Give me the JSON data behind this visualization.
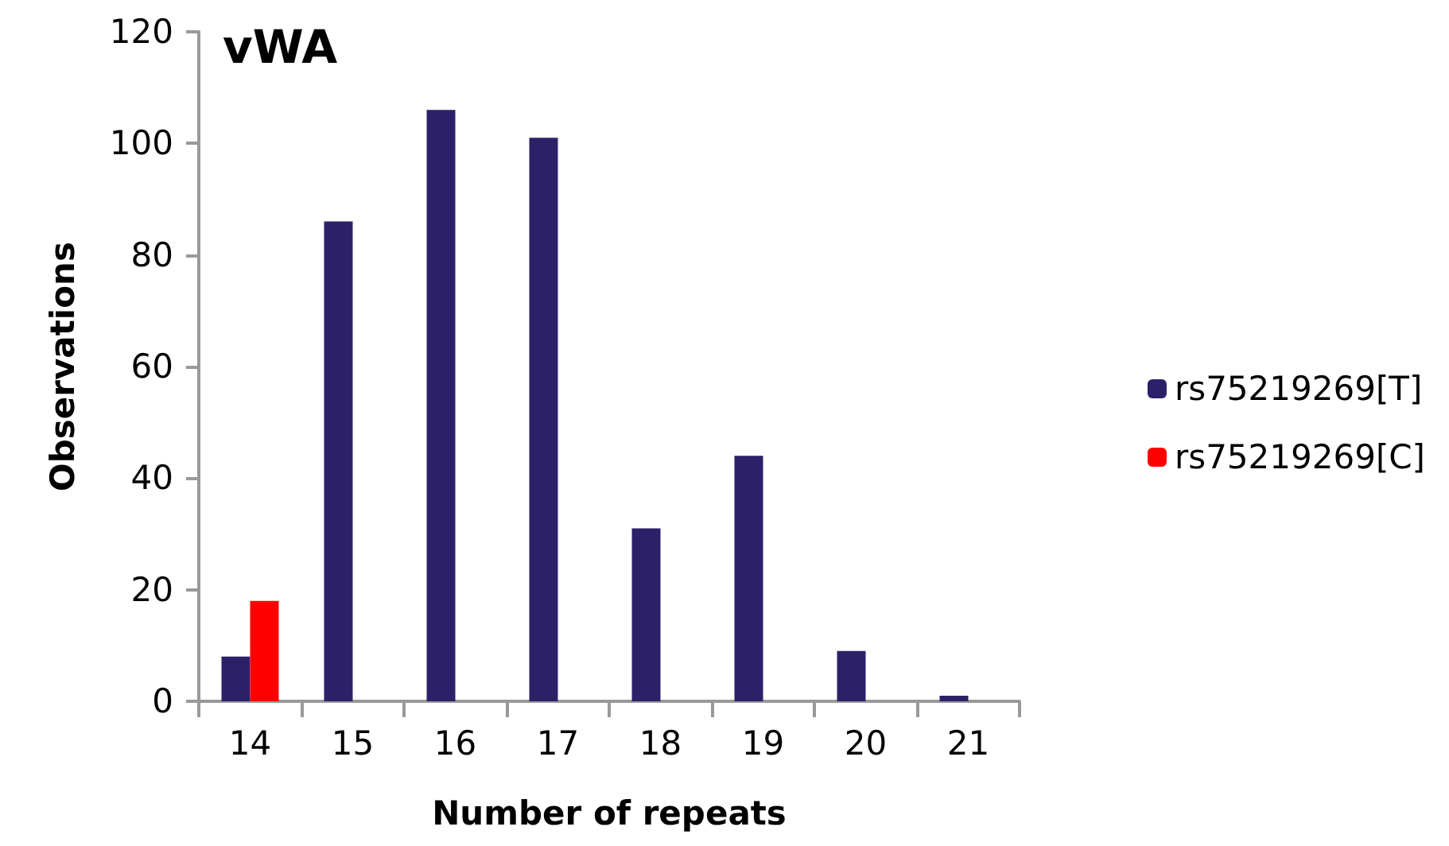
{
  "chart_data": {
    "type": "bar",
    "title": "vWA",
    "xlabel": "Number of repeats",
    "ylabel": "Observations",
    "categories": [
      "14",
      "15",
      "16",
      "17",
      "18",
      "19",
      "20",
      "21"
    ],
    "series": [
      {
        "name": "rs75219269[T]",
        "color": "#2c2169",
        "values": [
          8,
          86,
          106,
          101,
          31,
          44,
          9,
          1
        ]
      },
      {
        "name": "rs75219269[C]",
        "color": "#ff0000",
        "values": [
          18,
          null,
          null,
          null,
          null,
          null,
          null,
          null
        ]
      }
    ],
    "ylim": [
      0,
      120
    ],
    "yticks": [
      0,
      20,
      40,
      60,
      80,
      100,
      120
    ],
    "grid": false,
    "legend": "right"
  }
}
